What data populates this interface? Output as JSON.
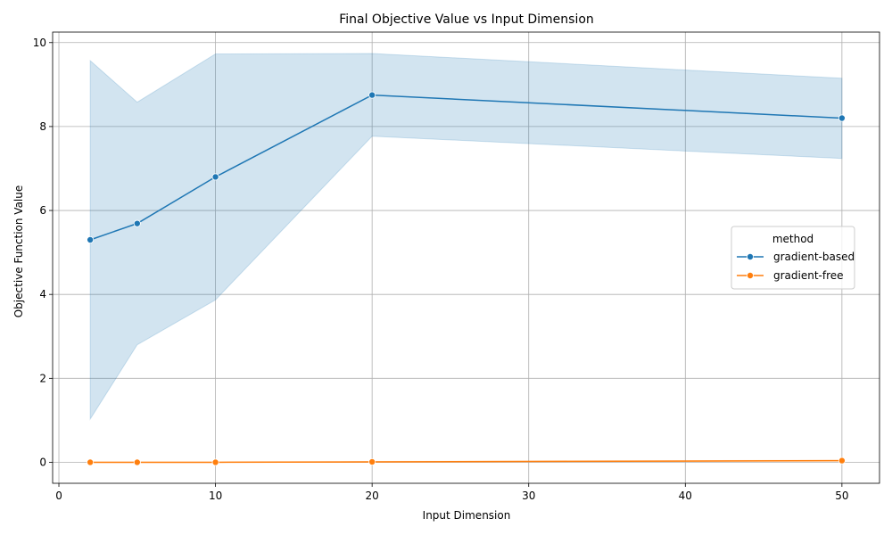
{
  "chart_data": {
    "type": "line",
    "title": "Final Objective Value vs Input Dimension",
    "xlabel": "Input Dimension",
    "ylabel": "Objective Function Value",
    "xlim": [
      -0.4,
      52.4
    ],
    "ylim": [
      -0.5,
      10.25
    ],
    "x_ticks": [
      0,
      10,
      20,
      30,
      40,
      50
    ],
    "y_ticks": [
      0,
      2,
      4,
      6,
      8,
      10
    ],
    "grid": true,
    "legend": {
      "title": "method",
      "placement": "center-right"
    },
    "x": [
      2,
      5,
      10,
      20,
      50
    ],
    "series": [
      {
        "name": "gradient-based",
        "color": "#1f77b4",
        "marker": "circle",
        "values": [
          5.3,
          5.69,
          6.8,
          8.75,
          8.2
        ],
        "ci_upper": [
          9.57,
          8.58,
          9.73,
          9.74,
          9.15
        ],
        "ci_lower": [
          1.03,
          2.8,
          3.87,
          7.77,
          7.24
        ],
        "band_color": "#1f77b4"
      },
      {
        "name": "gradient-free",
        "color": "#ff7f0e",
        "marker": "circle",
        "values": [
          0.0,
          0.0,
          0.0,
          0.01,
          0.04
        ],
        "ci_upper": [
          0.01,
          0.01,
          0.01,
          0.02,
          0.05
        ],
        "ci_lower": [
          0.0,
          0.0,
          0.0,
          0.0,
          0.03
        ],
        "band_color": "#ff7f0e"
      }
    ]
  }
}
